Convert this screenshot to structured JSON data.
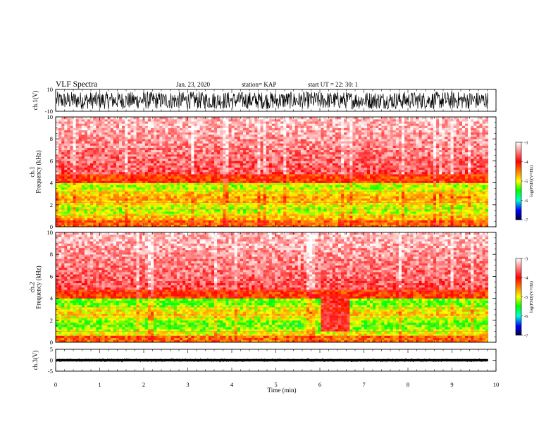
{
  "header": {
    "title": "VLF Spectra",
    "date": "Jan. 23, 2020",
    "station": "station= KAP",
    "start": "start  UT =   22: 30: 1"
  },
  "chart_data": [
    {
      "type": "line",
      "name": "ch1-waveform",
      "ylabel": "ch.1(V)",
      "ylim": [
        -10,
        10
      ],
      "yticks": [
        "10",
        "-10"
      ],
      "xlim": [
        0,
        10
      ],
      "x_data_end": 9.82,
      "amplitude_range": [
        -8,
        8
      ]
    },
    {
      "type": "heatmap",
      "name": "ch1-spectrogram",
      "ylabel": "ch.1\nFrequency  (kHz)",
      "ylim": [
        0,
        10
      ],
      "yticks": [
        "10",
        "8",
        "6",
        "4",
        "2",
        "0"
      ],
      "xlim": [
        0,
        10
      ],
      "x_data_end": 9.82,
      "colorbar": {
        "label": "log(PSD)(V²/Hz)",
        "range": [
          -7,
          -3
        ],
        "ticks": [
          "-3",
          "-4",
          "-5",
          "-6",
          "-7"
        ]
      }
    },
    {
      "type": "heatmap",
      "name": "ch2-spectrogram",
      "ylabel": "ch.2\nFrequency  (kHz)",
      "ylim": [
        0,
        10
      ],
      "yticks": [
        "10",
        "8",
        "6",
        "4",
        "2",
        "0"
      ],
      "xlim": [
        0,
        10
      ],
      "x_data_end": 9.82,
      "interference_interval_min": [
        6.0,
        6.7
      ],
      "colorbar": {
        "label": "log(PSD)(V²/Hz)",
        "range": [
          -7,
          -3
        ],
        "ticks": [
          "-3",
          "-4",
          "-5",
          "-6",
          "-7"
        ]
      }
    },
    {
      "type": "line",
      "name": "ch3-waveform",
      "ylabel": "ch.3(V)",
      "ylim": [
        -5,
        5
      ],
      "yticks": [
        "5",
        "0",
        "-5"
      ],
      "xlim": [
        0,
        10
      ],
      "x_data_end": 9.82,
      "amplitude_range": [
        -0.7,
        0.7
      ]
    }
  ],
  "xaxis": {
    "label": "Time  (min)",
    "ticks": [
      "0",
      "1",
      "2",
      "3",
      "4",
      "5",
      "6",
      "7",
      "8",
      "9",
      "10"
    ]
  },
  "colors": {
    "scale": [
      "#ffffff",
      "#ff0000",
      "#ffff00",
      "#00ff00",
      "#0000ff",
      "#000040"
    ],
    "trace": "#000000"
  }
}
